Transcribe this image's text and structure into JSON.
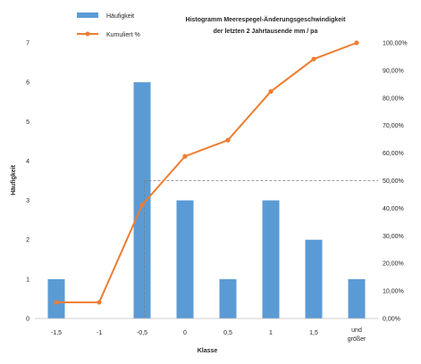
{
  "chart_data": {
    "type": "bar",
    "title_lines": [
      "Histogramm Meerespegel-Änderungsgeschwindigkeit",
      "der letzten 2 Jahrtausende  mm / pa"
    ],
    "xlabel": "Klasse",
    "ylabel": "Häufigkeit",
    "categories": [
      "-1,5",
      "-1",
      "-0,5",
      "0",
      "0,5",
      "1",
      "1,5",
      "und größer"
    ],
    "series": [
      {
        "name": "Häufigkeit",
        "type": "bar",
        "axis": "left",
        "color": "#5B9BD5",
        "values": [
          1,
          0,
          6,
          3,
          1,
          3,
          2,
          1
        ]
      },
      {
        "name": "Kumuliert %",
        "type": "line",
        "axis": "right",
        "color": "#ED7D31",
        "values": [
          0.0588,
          0.0588,
          0.4118,
          0.5882,
          0.6471,
          0.8235,
          0.9412,
          1.0
        ]
      }
    ],
    "y_left": {
      "min": 0,
      "max": 7,
      "ticks": [
        0,
        1,
        2,
        3,
        4,
        5,
        6,
        7
      ],
      "tick_labels": [
        "0",
        "1",
        "2",
        "3",
        "4",
        "5",
        "6",
        "7"
      ]
    },
    "y_right": {
      "min": 0,
      "max": 1,
      "ticks": [
        0,
        0.1,
        0.2,
        0.3,
        0.4,
        0.5,
        0.6,
        0.7,
        0.8,
        0.9,
        1.0
      ],
      "tick_labels": [
        "0,00%",
        "10,00%",
        "20,00%",
        "30,00%",
        "40,00%",
        "50,00%",
        "60,00%",
        "70,00%",
        "80,00%",
        "90,00%",
        "100,00%"
      ]
    },
    "reference": {
      "style": "dashed",
      "x_category_position": 2.55,
      "y_value": 0.5
    },
    "grid": false,
    "legend": "top-left"
  }
}
